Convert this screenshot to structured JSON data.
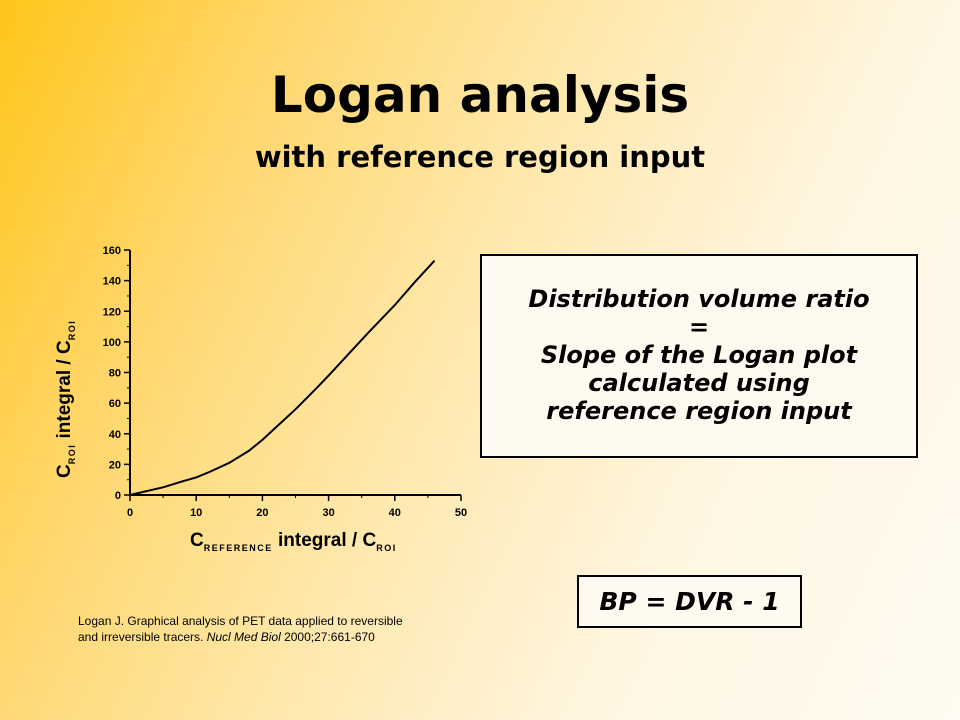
{
  "slide": {
    "title": "Logan analysis",
    "subtitle": "with reference region input",
    "dvr_lines": [
      "Distribution volume ratio",
      "=",
      "Slope of the Logan plot",
      "calculated using",
      "reference region input"
    ],
    "bp_formula": "BP = DVR - 1",
    "reference": {
      "line1": "Logan J. Graphical analysis of PET data applied to reversible",
      "line2_start": "and irreversible tracers. ",
      "journal": "Nucl Med Biol",
      "line2_end": " 2000;27:661-670"
    },
    "colors": {
      "background_start": "#ffc61a",
      "background_end": "#fffbf2",
      "text": "#000000"
    }
  },
  "chart_data": {
    "type": "line",
    "x": [
      0,
      2,
      5,
      8,
      10,
      12,
      15,
      18,
      20,
      22,
      25,
      28,
      30,
      33,
      36,
      40,
      43,
      46
    ],
    "series": [
      {
        "values": [
          0,
          2,
          5,
          9,
          11.5,
          15,
          21,
          29,
          36,
          44,
          56,
          69,
          78,
          92,
          106,
          124,
          139,
          153
        ]
      }
    ],
    "xlim": [
      0,
      50
    ],
    "ylim": [
      0,
      160
    ],
    "xticks": [
      "0",
      "10",
      "20",
      "30",
      "40",
      "50"
    ],
    "yticks": [
      "0",
      "20",
      "40",
      "60",
      "80",
      "100",
      "120",
      "140",
      "160"
    ],
    "xlabel": {
      "main1": "C",
      "sub1": "REFERENCE",
      "main2": " integral / C",
      "sub2": "ROI"
    },
    "ylabel": {
      "main1": "C",
      "sub1": "ROI",
      "main2": " integral / C",
      "sub2": "ROI"
    },
    "grid": false
  }
}
